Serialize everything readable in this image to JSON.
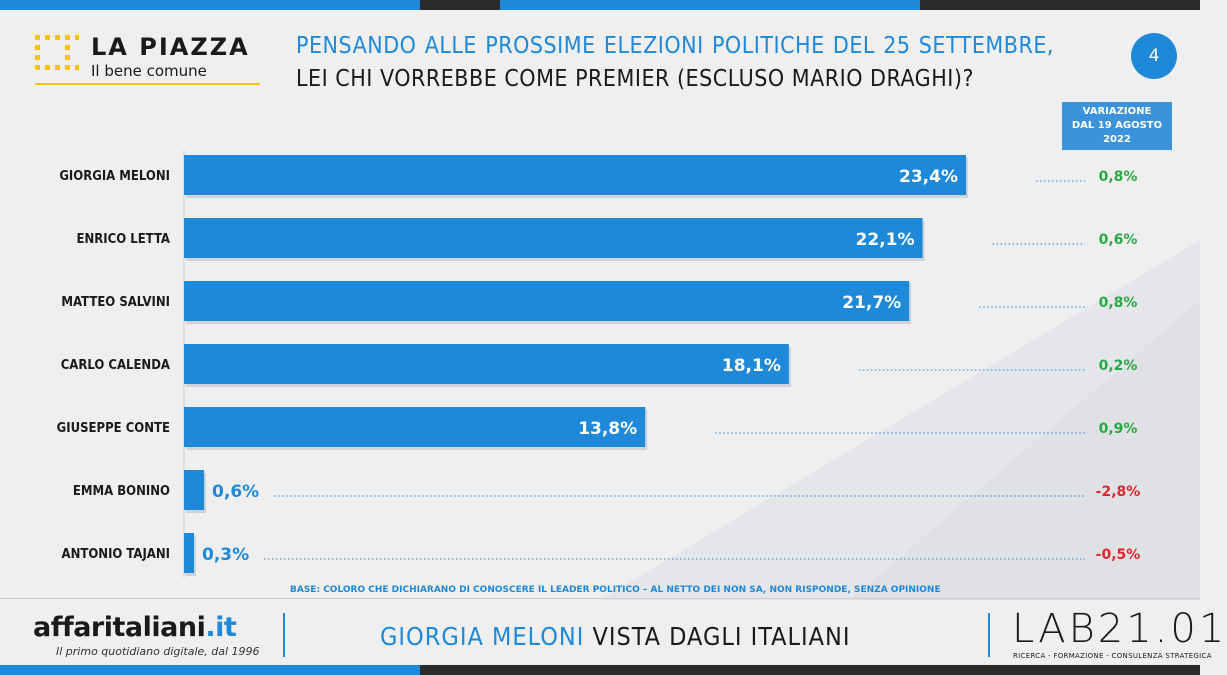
{
  "brand": {
    "title": "LA PIAZZA",
    "subtitle": "Il bene comune"
  },
  "question": {
    "highlight": "PENSANDO ALLE PROSSIME ELEZIONI POLITICHE DEL 25 SETTEMBRE,",
    "rest": " LEI CHI VORREBBE COME PREMIER (ESCLUSO MARIO DRAGHI)?"
  },
  "page_number": "4",
  "variation_header": {
    "line1": "VARIAZIONE",
    "line2": "DAL 19 AGOSTO",
    "line3": "2022"
  },
  "base_note": "BASE: COLORO CHE DICHIARANO DI CONOSCERE IL LEADER POLITICO – AL NETTO DEI NON SA, NON RISPONDE, SENZA OPINIONE",
  "footer": {
    "publisher": "affaritaliani",
    "publisher_tld": ".it",
    "publisher_tagline": "Il primo quotidiano digitale, dal 1996",
    "title_highlight": "GIORGIA MELONI",
    "title_rest": " VISTA DAGLI ITALIANI",
    "lab_name": "LAB21.01",
    "lab_tagline": "RICERCA - FORMAZIONE - CONSULENZA STRATEGICA"
  },
  "colors": {
    "accent": "#1e88d9",
    "positive": "#2aa845",
    "negative": "#e0262c",
    "text": "#1a1a1a"
  },
  "chart_data": {
    "type": "bar",
    "orientation": "horizontal",
    "categories": [
      "GIORGIA MELONI",
      "ENRICO LETTA",
      "MATTEO SALVINI",
      "CARLO CALENDA",
      "GIUSEPPE CONTE",
      "EMMA BONINO",
      "ANTONIO TAJANI"
    ],
    "values": [
      23.4,
      22.1,
      21.7,
      18.1,
      13.8,
      0.6,
      0.3
    ],
    "value_labels": [
      "23,4%",
      "22,1%",
      "21,7%",
      "18,1%",
      "13,8%",
      "0,6%",
      "0,3%"
    ],
    "variations": [
      "0,8%",
      "0,6%",
      "0,8%",
      "0,2%",
      "0,9%",
      "-2,8%",
      "-0,5%"
    ],
    "variation_signs": [
      "positive",
      "positive",
      "positive",
      "positive",
      "positive",
      "negative",
      "negative"
    ],
    "xlim": [
      0,
      25
    ],
    "grid": false
  }
}
